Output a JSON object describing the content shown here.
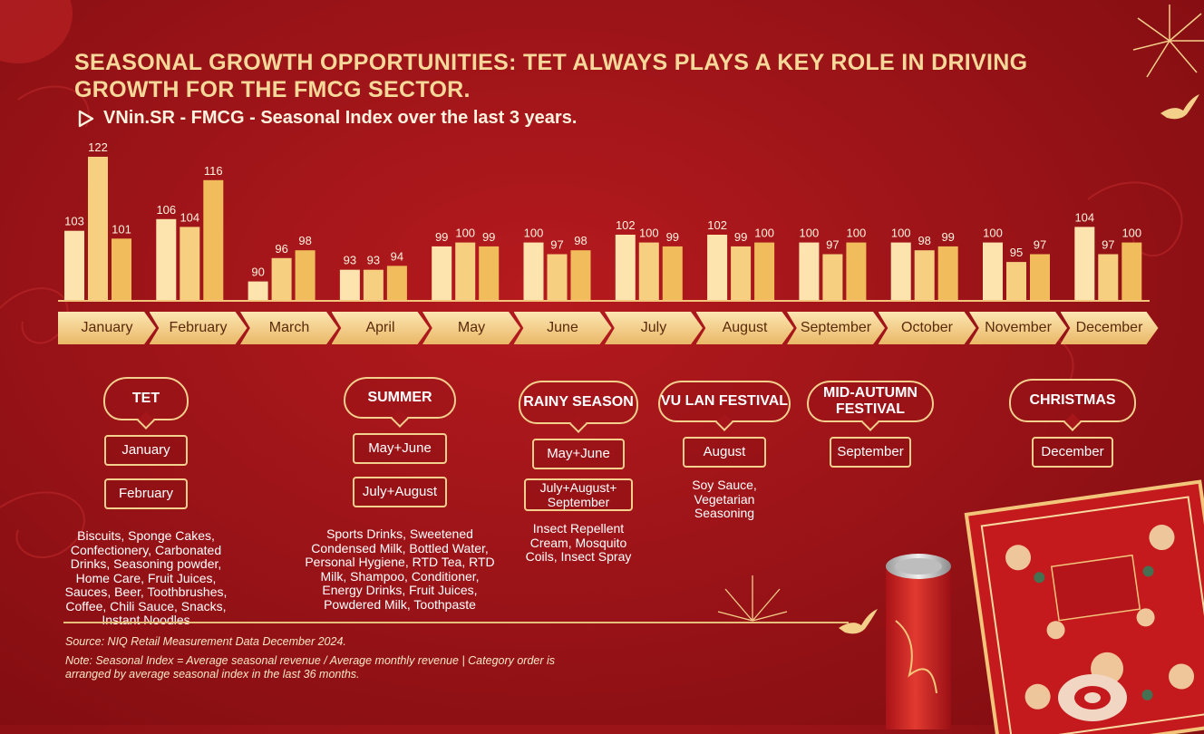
{
  "title": "SEASONAL GROWTH OPPORTUNITIES: TET ALWAYS PLAYS A KEY ROLE IN DRIVING GROWTH FOR THE FMCG SECTOR.",
  "subtitle": "VNin.SR - FMCG - Seasonal Index over the last 3 years.",
  "colors": {
    "bar1": "#fde3ae",
    "bar2": "#f6cf80",
    "bar3": "#f1bc5c",
    "accent": "#f6d99a",
    "background": "#9c1418"
  },
  "chart_data": {
    "type": "bar",
    "categories": [
      "January",
      "February",
      "March",
      "April",
      "May",
      "June",
      "July",
      "August",
      "September",
      "October",
      "November",
      "December"
    ],
    "series": [
      {
        "values": [
          103,
          106,
          90,
          93,
          99,
          100,
          102,
          102,
          100,
          100,
          100,
          104
        ]
      },
      {
        "values": [
          122,
          104,
          96,
          93,
          100,
          97,
          100,
          99,
          97,
          98,
          95,
          97
        ]
      },
      {
        "values": [
          101,
          116,
          98,
          94,
          99,
          98,
          99,
          100,
          100,
          99,
          97,
          100
        ]
      }
    ],
    "title": "VNin.SR - FMCG - Seasonal Index over the last 3 years.",
    "xlabel": "",
    "ylabel": "",
    "ylim": [
      80,
      125
    ],
    "grid": false
  },
  "seasons": [
    {
      "name": "TET",
      "periods": [
        "January",
        "February"
      ],
      "categories": "Biscuits, Sponge Cakes, Confectionery, Carbonated Drinks, Seasoning powder, Home Care, Fruit Juices, Sauces, Beer, Toothbrushes, Coffee, Chili Sauce, Snacks, Instant Noodles"
    },
    {
      "name": "SUMMER",
      "periods": [
        "May+June",
        "July+August"
      ],
      "categories": "Sports Drinks, Sweetened Condensed Milk, Bottled Water, Personal Hygiene, RTD Tea, RTD Milk, Shampoo, Conditioner, Energy Drinks, Fruit Juices, Powdered Milk, Toothpaste"
    },
    {
      "name": "RAINY SEASON",
      "periods": [
        "May+June",
        "July+August+ September"
      ],
      "categories": "Insect Repellent Cream, Mosquito Coils, Insect Spray"
    },
    {
      "name": "VU LAN FESTIVAL",
      "periods": [
        "August"
      ],
      "categories": "Soy Sauce, Vegetarian Seasoning"
    },
    {
      "name": "MID-AUTUMN FESTIVAL",
      "periods": [
        "September"
      ],
      "categories": ""
    },
    {
      "name": "CHRISTMAS",
      "periods": [
        "December"
      ],
      "categories": ""
    }
  ],
  "source": "Source: NIQ Retail Measurement Data December 2024.",
  "note": "Note: Seasonal Index = Average seasonal revenue / Average monthly revenue | Category order is arranged by average seasonal index in the last 36 months.",
  "icons": [
    "play-icon",
    "firework-icon",
    "swallow-icon",
    "gift-box-image",
    "can-image"
  ]
}
